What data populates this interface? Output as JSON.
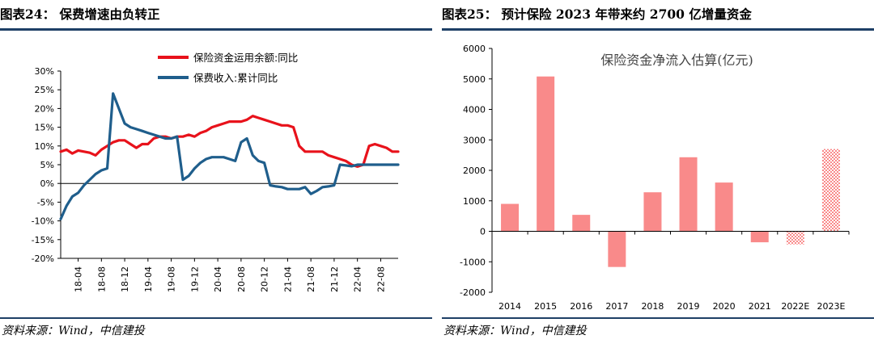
{
  "panels": [
    {
      "title": "图表24： 保费增速由负转正",
      "source": "资料来源：Wind，中信建投"
    },
    {
      "title": "图表25： 预计保险 2023 年带来约 2700 亿增量资金",
      "source": "资料来源：Wind，中信建投"
    }
  ],
  "colors": {
    "red": "#e8121b",
    "blue": "#1f5e8c",
    "bar": "#f98a8a",
    "accent": "#1e3f66"
  },
  "chart_data": [
    {
      "type": "line",
      "title": "",
      "xlabel": "",
      "ylabel": "",
      "ylim": [
        -20,
        30
      ],
      "yticks": [
        "30%",
        "25%",
        "20%",
        "15%",
        "10%",
        "5%",
        "0%",
        "-5%",
        "-10%",
        "-15%",
        "-20%"
      ],
      "x_tick_labels": [
        "18-04",
        "18-08",
        "18-12",
        "19-04",
        "19-08",
        "19-12",
        "20-04",
        "20-08",
        "20-12",
        "21-04",
        "21-08",
        "21-12",
        "22-04",
        "22-08"
      ],
      "x": [
        "18-01",
        "18-02",
        "18-03",
        "18-04",
        "18-05",
        "18-06",
        "18-07",
        "18-08",
        "18-09",
        "18-10",
        "18-11",
        "18-12",
        "19-01",
        "19-02",
        "19-03",
        "19-04",
        "19-05",
        "19-06",
        "19-07",
        "19-08",
        "19-09",
        "19-10",
        "19-11",
        "19-12",
        "20-01",
        "20-02",
        "20-03",
        "20-04",
        "20-05",
        "20-06",
        "20-07",
        "20-08",
        "20-09",
        "20-10",
        "20-11",
        "20-12",
        "21-01",
        "21-02",
        "21-03",
        "21-04",
        "21-05",
        "21-06",
        "21-07",
        "21-08",
        "21-09",
        "21-10",
        "21-11",
        "21-12",
        "22-01",
        "22-02",
        "22-03",
        "22-04",
        "22-05",
        "22-06",
        "22-07",
        "22-08",
        "22-09",
        "22-10",
        "22-11"
      ],
      "legend": "top",
      "series": [
        {
          "name": "保险资金运用余额:同比",
          "values": [
            8.5,
            9.0,
            8.0,
            8.8,
            8.5,
            8.2,
            7.5,
            9.0,
            10.0,
            11.0,
            11.5,
            11.5,
            10.5,
            9.5,
            10.5,
            10.5,
            12.0,
            12.5,
            12.5,
            12.0,
            12.5,
            12.5,
            13.0,
            12.5,
            13.5,
            14.0,
            15.0,
            15.5,
            16.0,
            16.5,
            16.5,
            16.5,
            17.0,
            18.0,
            17.5,
            17.0,
            16.5,
            16.0,
            15.5,
            15.5,
            15.0,
            10.0,
            8.5,
            8.5,
            8.5,
            8.5,
            7.5,
            7.0,
            6.5,
            6.0,
            5.0,
            4.5,
            5.0,
            10.0,
            10.5,
            10.0,
            9.5,
            8.5,
            8.5
          ]
        },
        {
          "name": "保费收入:累计同比",
          "values": [
            -9.5,
            -6.0,
            -3.5,
            -2.5,
            -0.5,
            1.0,
            2.5,
            3.5,
            4.0,
            24.0,
            20.0,
            16.0,
            15.0,
            14.5,
            14.0,
            13.5,
            13.0,
            12.5,
            12.0,
            12.0,
            12.5,
            1.0,
            2.0,
            4.0,
            5.5,
            6.5,
            7.0,
            7.0,
            7.0,
            6.5,
            6.0,
            11.0,
            12.0,
            7.5,
            6.0,
            5.5,
            -0.5,
            -0.8,
            -1.0,
            -1.5,
            -1.5,
            -1.5,
            -1.0,
            -2.8,
            -2.0,
            -1.0,
            -0.8,
            -0.5,
            5.0,
            4.8,
            4.6,
            5.0,
            5.0,
            5.0,
            5.0,
            5.0,
            5.0,
            5.0,
            5.0
          ]
        }
      ]
    },
    {
      "type": "bar",
      "title": "保险资金净流入估算(亿元)",
      "xlabel": "",
      "ylabel": "",
      "ylim": [
        -2000,
        6000
      ],
      "yticks": [
        "6000",
        "5000",
        "4000",
        "3000",
        "2000",
        "1000",
        "0",
        "-1000",
        "-2000"
      ],
      "categories": [
        "2014",
        "2015",
        "2016",
        "2017",
        "2018",
        "2019",
        "2020",
        "2021",
        "2022E",
        "2023E"
      ],
      "values": [
        900,
        5080,
        540,
        -1170,
        1280,
        2430,
        1600,
        -360,
        -430,
        2700
      ],
      "estimate_bars": [
        "2022E",
        "2023E"
      ]
    }
  ]
}
